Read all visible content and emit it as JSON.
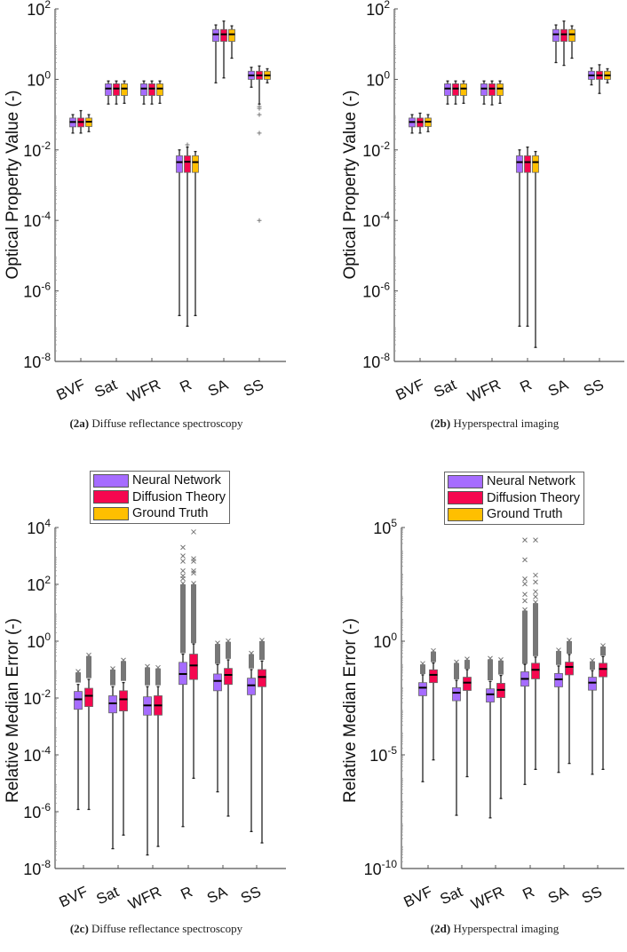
{
  "colors": {
    "neural_network": "#A66CFF",
    "diffusion_theory": "#F5074F",
    "ground_truth": "#FFBF00",
    "median": "#000000",
    "outlier": "#777777"
  },
  "legend": [
    {
      "label": "Neural Network",
      "key": "neural_network"
    },
    {
      "label": "Diffusion Theory",
      "key": "diffusion_theory"
    },
    {
      "label": "Ground Truth",
      "key": "ground_truth"
    }
  ],
  "chart_data": [
    {
      "type": "box",
      "panel": "2a",
      "caption_tag": "(2a)",
      "caption_text": " Diffuse reflectance spectroscopy",
      "ylabel": "Optical Property Value (-)",
      "yscale": "log",
      "ylim_exp": [
        -8,
        2
      ],
      "yticks": [
        {
          "base": "10",
          "exp": "2"
        },
        {
          "base": "10",
          "exp": "0"
        },
        {
          "base": "10",
          "exp": "-2"
        },
        {
          "base": "10",
          "exp": "-4"
        },
        {
          "base": "10",
          "exp": "-6"
        },
        {
          "base": "10",
          "exp": "-8"
        }
      ],
      "ytick_exps": [
        2,
        0,
        -2,
        -4,
        -6,
        -8
      ],
      "categories": [
        "BVF",
        "Sat",
        "WFR",
        "R",
        "SA",
        "SS"
      ],
      "series_keys": [
        "neural_network",
        "diffusion_theory",
        "ground_truth"
      ],
      "boxes": [
        [
          {
            "lo": 0.03,
            "q1": 0.045,
            "med": 0.062,
            "q3": 0.08,
            "hi": 0.1
          },
          {
            "lo": 0.03,
            "q1": 0.045,
            "med": 0.062,
            "q3": 0.08,
            "hi": 0.13
          },
          {
            "lo": 0.033,
            "q1": 0.046,
            "med": 0.063,
            "q3": 0.08,
            "hi": 0.1
          }
        ],
        [
          {
            "lo": 0.2,
            "q1": 0.35,
            "med": 0.55,
            "q3": 0.75,
            "hi": 0.9
          },
          {
            "lo": 0.2,
            "q1": 0.35,
            "med": 0.55,
            "q3": 0.75,
            "hi": 0.9
          },
          {
            "lo": 0.21,
            "q1": 0.35,
            "med": 0.55,
            "q3": 0.75,
            "hi": 0.9
          }
        ],
        [
          {
            "lo": 0.2,
            "q1": 0.35,
            "med": 0.55,
            "q3": 0.75,
            "hi": 0.9
          },
          {
            "lo": 0.2,
            "q1": 0.35,
            "med": 0.55,
            "q3": 0.75,
            "hi": 0.9
          },
          {
            "lo": 0.21,
            "q1": 0.35,
            "med": 0.55,
            "q3": 0.75,
            "hi": 0.9
          }
        ],
        [
          {
            "lo": 2e-07,
            "q1": 0.0023,
            "med": 0.0045,
            "q3": 0.0068,
            "hi": 0.01
          },
          {
            "lo": 1e-07,
            "q1": 0.0023,
            "med": 0.0046,
            "q3": 0.0068,
            "hi": 0.012,
            "outliers": [
              0.014
            ]
          },
          {
            "lo": 2e-07,
            "q1": 0.0023,
            "med": 0.0045,
            "q3": 0.0068,
            "hi": 0.009
          }
        ],
        [
          {
            "lo": 0.8,
            "q1": 12,
            "med": 19,
            "q3": 26,
            "hi": 35
          },
          {
            "lo": 1.1,
            "q1": 12,
            "med": 19,
            "q3": 26,
            "hi": 45
          },
          {
            "lo": 4,
            "q1": 12,
            "med": 19,
            "q3": 26,
            "hi": 33
          }
        ],
        [
          {
            "lo": 0.6,
            "q1": 1.0,
            "med": 1.3,
            "q3": 1.7,
            "hi": 2.2
          },
          {
            "lo": 0.2,
            "q1": 1.0,
            "med": 1.3,
            "q3": 1.7,
            "hi": 2.4,
            "outliers": [
              0.17,
              0.15,
              0.1,
              0.03,
              0.0001
            ]
          },
          {
            "lo": 0.8,
            "q1": 1.0,
            "med": 1.3,
            "q3": 1.7,
            "hi": 2.0
          }
        ]
      ]
    },
    {
      "type": "box",
      "panel": "2b",
      "caption_tag": "(2b)",
      "caption_text": " Hyperspectral imaging",
      "ylabel": "Optical Property Value (-)",
      "yscale": "log",
      "ylim_exp": [
        -8,
        2
      ],
      "yticks": [
        {
          "base": "10",
          "exp": "2"
        },
        {
          "base": "10",
          "exp": "0"
        },
        {
          "base": "10",
          "exp": "-2"
        },
        {
          "base": "10",
          "exp": "-4"
        },
        {
          "base": "10",
          "exp": "-6"
        },
        {
          "base": "10",
          "exp": "-8"
        }
      ],
      "ytick_exps": [
        2,
        0,
        -2,
        -4,
        -6,
        -8
      ],
      "categories": [
        "BVF",
        "Sat",
        "WFR",
        "R",
        "SA",
        "SS"
      ],
      "series_keys": [
        "neural_network",
        "diffusion_theory",
        "ground_truth"
      ],
      "boxes": [
        [
          {
            "lo": 0.03,
            "q1": 0.045,
            "med": 0.062,
            "q3": 0.08,
            "hi": 0.1
          },
          {
            "lo": 0.03,
            "q1": 0.045,
            "med": 0.062,
            "q3": 0.08,
            "hi": 0.11
          },
          {
            "lo": 0.033,
            "q1": 0.046,
            "med": 0.063,
            "q3": 0.08,
            "hi": 0.1
          }
        ],
        [
          {
            "lo": 0.2,
            "q1": 0.35,
            "med": 0.55,
            "q3": 0.75,
            "hi": 0.9
          },
          {
            "lo": 0.2,
            "q1": 0.35,
            "med": 0.55,
            "q3": 0.75,
            "hi": 0.9
          },
          {
            "lo": 0.21,
            "q1": 0.35,
            "med": 0.55,
            "q3": 0.75,
            "hi": 0.9
          }
        ],
        [
          {
            "lo": 0.2,
            "q1": 0.35,
            "med": 0.55,
            "q3": 0.75,
            "hi": 0.9
          },
          {
            "lo": 0.19,
            "q1": 0.35,
            "med": 0.55,
            "q3": 0.75,
            "hi": 0.9
          },
          {
            "lo": 0.21,
            "q1": 0.35,
            "med": 0.55,
            "q3": 0.75,
            "hi": 0.9
          }
        ],
        [
          {
            "lo": 1e-07,
            "q1": 0.0023,
            "med": 0.0045,
            "q3": 0.0068,
            "hi": 0.01
          },
          {
            "lo": 1e-07,
            "q1": 0.0023,
            "med": 0.0045,
            "q3": 0.0068,
            "hi": 0.012
          },
          {
            "lo": 2.5e-08,
            "q1": 0.0023,
            "med": 0.0045,
            "q3": 0.0068,
            "hi": 0.009
          }
        ],
        [
          {
            "lo": 3,
            "q1": 12,
            "med": 19,
            "q3": 26,
            "hi": 35
          },
          {
            "lo": 2.5,
            "q1": 12,
            "med": 19,
            "q3": 26,
            "hi": 45
          },
          {
            "lo": 4,
            "q1": 12,
            "med": 19,
            "q3": 26,
            "hi": 33
          }
        ],
        [
          {
            "lo": 0.7,
            "q1": 1.0,
            "med": 1.3,
            "q3": 1.7,
            "hi": 2.1
          },
          {
            "lo": 0.4,
            "q1": 1.0,
            "med": 1.3,
            "q3": 1.7,
            "hi": 2.6
          },
          {
            "lo": 0.8,
            "q1": 1.0,
            "med": 1.3,
            "q3": 1.7,
            "hi": 2.0
          }
        ]
      ]
    },
    {
      "type": "box",
      "panel": "2c",
      "caption_tag": "(2c)",
      "caption_text": " Diffuse reflectance spectroscopy",
      "ylabel": "Relative Median Error (-)",
      "yscale": "log",
      "ylim_exp": [
        -8,
        4
      ],
      "yticks": [
        {
          "base": "10",
          "exp": "4"
        },
        {
          "base": "10",
          "exp": "2"
        },
        {
          "base": "10",
          "exp": "0"
        },
        {
          "base": "10",
          "exp": "-2"
        },
        {
          "base": "10",
          "exp": "-4"
        },
        {
          "base": "10",
          "exp": "-6"
        },
        {
          "base": "10",
          "exp": "-8"
        }
      ],
      "ytick_exps": [
        4,
        2,
        0,
        -2,
        -4,
        -6,
        -8
      ],
      "categories": [
        "BVF",
        "Sat",
        "WFR",
        "R",
        "SA",
        "SS"
      ],
      "series_keys": [
        "neural_network",
        "diffusion_theory"
      ],
      "boxes": [
        [
          {
            "lo": 1.2e-06,
            "q1": 0.004,
            "med": 0.009,
            "q3": 0.017,
            "hi": 0.03,
            "outlier_range": [
              0.035,
              0.08
            ]
          },
          {
            "lo": 1.2e-06,
            "q1": 0.005,
            "med": 0.012,
            "q3": 0.022,
            "hi": 0.045,
            "outlier_range": [
              0.05,
              0.3
            ]
          }
        ],
        [
          {
            "lo": 5e-08,
            "q1": 0.003,
            "med": 0.0065,
            "q3": 0.012,
            "hi": 0.025,
            "outlier_range": [
              0.028,
              0.1
            ]
          },
          {
            "lo": 1.5e-07,
            "q1": 0.0035,
            "med": 0.009,
            "q3": 0.018,
            "hi": 0.035,
            "outlier_range": [
              0.04,
              0.2
            ]
          }
        ],
        [
          {
            "lo": 3e-08,
            "q1": 0.0025,
            "med": 0.0055,
            "q3": 0.011,
            "hi": 0.025,
            "outlier_range": [
              0.028,
              0.12
            ]
          },
          {
            "lo": 6e-08,
            "q1": 0.0025,
            "med": 0.0055,
            "q3": 0.012,
            "hi": 0.025,
            "outlier_range": [
              0.028,
              0.11
            ]
          }
        ],
        [
          {
            "lo": 3e-07,
            "q1": 0.03,
            "med": 0.07,
            "q3": 0.18,
            "hi": 0.35,
            "outlier_range": [
              0.38,
              100
            ],
            "outliers": [
              160,
              200,
              300,
              650,
              1000,
              2000
            ]
          },
          {
            "lo": 1.5e-05,
            "q1": 0.045,
            "med": 0.14,
            "q3": 0.35,
            "hi": 0.8,
            "outlier_range": [
              0.85,
              100
            ],
            "outliers": [
              250,
              300,
              650,
              800,
              7000
            ]
          }
        ],
        [
          {
            "lo": 5e-06,
            "q1": 0.018,
            "med": 0.04,
            "q3": 0.07,
            "hi": 0.15,
            "outlier_range": [
              0.16,
              0.8
            ]
          },
          {
            "lo": 7e-07,
            "q1": 0.03,
            "med": 0.065,
            "q3": 0.11,
            "hi": 0.22,
            "outlier_range": [
              0.24,
              0.95
            ]
          }
        ],
        [
          {
            "lo": 2e-07,
            "q1": 0.013,
            "med": 0.028,
            "q3": 0.05,
            "hi": 0.1,
            "outlier_range": [
              0.11,
              0.35
            ]
          },
          {
            "lo": 8e-08,
            "q1": 0.025,
            "med": 0.055,
            "q3": 0.1,
            "hi": 0.2,
            "outlier_range": [
              0.22,
              1.0
            ]
          }
        ]
      ]
    },
    {
      "type": "box",
      "panel": "2d",
      "caption_tag": "(2d)",
      "caption_text": " Hyperspectral imaging",
      "ylabel": "Relative Median Error (-)",
      "yscale": "log",
      "ylim_exp": [
        -10,
        5
      ],
      "yticks": [
        {
          "base": "10",
          "exp": "5"
        },
        {
          "base": "10",
          "exp": "0"
        },
        {
          "base": "10",
          "exp": "-5"
        },
        {
          "base": "10",
          "exp": "-10"
        }
      ],
      "ytick_exps": [
        5,
        0,
        -5,
        -10
      ],
      "categories": [
        "BVF",
        "Sat",
        "WFR",
        "R",
        "SA",
        "SS"
      ],
      "series_keys": [
        "neural_network",
        "diffusion_theory"
      ],
      "boxes": [
        [
          {
            "lo": 6.6e-07,
            "q1": 0.004,
            "med": 0.009,
            "q3": 0.015,
            "hi": 0.033,
            "outlier_range": [
              0.036,
              0.095
            ]
          },
          {
            "lo": 6e-06,
            "q1": 0.015,
            "med": 0.033,
            "q3": 0.055,
            "hi": 0.11,
            "outlier_range": [
              0.12,
              0.35
            ]
          }
        ],
        [
          {
            "lo": 2.2e-08,
            "q1": 0.0024,
            "med": 0.0054,
            "q3": 0.009,
            "hi": 0.019,
            "outlier_range": [
              0.021,
              0.11
            ]
          },
          {
            "lo": 1.1e-06,
            "q1": 0.0068,
            "med": 0.015,
            "q3": 0.026,
            "hi": 0.056,
            "outlier_range": [
              0.06,
              0.15
            ]
          }
        ],
        [
          {
            "lo": 1.7e-08,
            "q1": 0.0021,
            "med": 0.0046,
            "q3": 0.008,
            "hi": 0.017,
            "outlier_range": [
              0.019,
              0.16
            ]
          },
          {
            "lo": 1.2e-07,
            "q1": 0.0033,
            "med": 0.0072,
            "q3": 0.014,
            "hi": 0.031,
            "outlier_range": [
              0.034,
              0.14
            ]
          }
        ],
        [
          {
            "lo": 5e-07,
            "q1": 0.0105,
            "med": 0.022,
            "q3": 0.045,
            "hi": 0.095,
            "outlier_range": [
              0.1,
              22
            ],
            "outliers": [
              60,
              115,
              330,
              550,
              3800,
              28000
            ]
          },
          {
            "lo": 2.3e-06,
            "q1": 0.022,
            "med": 0.055,
            "q3": 0.107,
            "hi": 0.2,
            "outlier_range": [
              0.22,
              47
            ],
            "outliers": [
              90,
              150,
              400,
              800,
              28000
            ]
          }
        ],
        [
          {
            "lo": 1.7e-06,
            "q1": 0.0098,
            "med": 0.021,
            "q3": 0.038,
            "hi": 0.081,
            "outlier_range": [
              0.09,
              0.37
            ]
          },
          {
            "lo": 4.2e-06,
            "q1": 0.033,
            "med": 0.074,
            "q3": 0.12,
            "hi": 0.26,
            "outlier_range": [
              0.28,
              1.0
            ]
          }
        ],
        [
          {
            "lo": 1.4e-06,
            "q1": 0.007,
            "med": 0.015,
            "q3": 0.026,
            "hi": 0.051,
            "outlier_range": [
              0.056,
              0.13
            ]
          },
          {
            "lo": 2.3e-06,
            "q1": 0.027,
            "med": 0.06,
            "q3": 0.107,
            "hi": 0.21,
            "outlier_range": [
              0.23,
              0.58
            ]
          }
        ]
      ]
    }
  ]
}
